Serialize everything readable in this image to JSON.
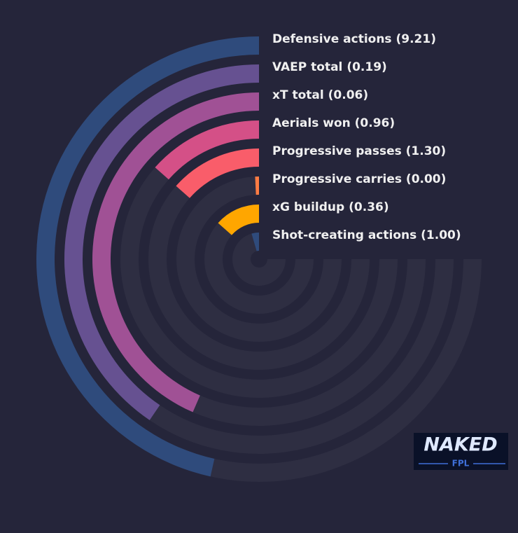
{
  "chart_data": {
    "type": "radial-bar",
    "categories": [
      "Defensive actions",
      "VAEP total",
      "xT total",
      "Aerials won",
      "Progressive passes",
      "Progressive carries",
      "xG buildup",
      "Shot-creating actions"
    ],
    "values": [
      9.21,
      0.19,
      0.06,
      0.96,
      1.3,
      0.0,
      0.36,
      1.0
    ],
    "value_labels": [
      "(9.21)",
      "(0.19)",
      "(0.06)",
      "(0.96)",
      "(1.30)",
      "(0.00)",
      "(0.36)",
      "(1.00)"
    ],
    "percentiles": [
      62,
      54,
      58,
      18,
      18,
      1,
      18,
      6
    ],
    "xlim": [
      0,
      100
    ],
    "colors": [
      "#2f4b7c",
      "#665191",
      "#a05195",
      "#d45087",
      "#f95d6a",
      "#ff7c43",
      "#ffa600",
      "#2f4b7c"
    ],
    "track_color": "#2e2e42"
  },
  "logo": {
    "title": "NAKED",
    "subtitle": "FPL"
  }
}
